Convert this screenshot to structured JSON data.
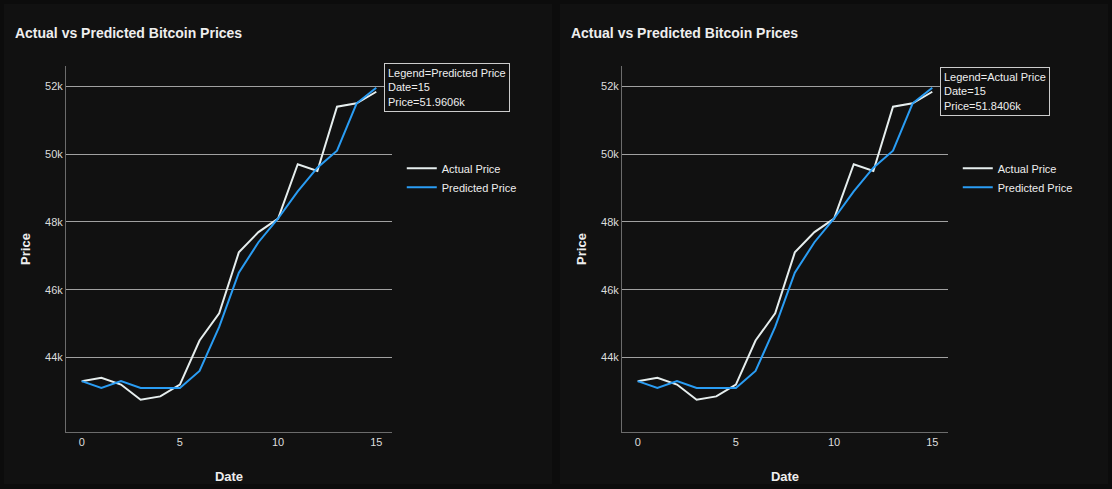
{
  "chart_data": [
    {
      "type": "line",
      "title": "Actual vs Predicted Bitcoin Prices",
      "x_label": "Date",
      "y_label": "Price",
      "x": [
        0,
        1,
        2,
        3,
        4,
        5,
        6,
        7,
        8,
        9,
        10,
        11,
        12,
        13,
        14,
        15
      ],
      "series": [
        {
          "name": "Actual Price",
          "color": "#e6eeee",
          "values": [
            43300,
            43400,
            43200,
            42750,
            42850,
            43200,
            44500,
            45300,
            47100,
            47700,
            48100,
            49700,
            49500,
            51400,
            51500,
            51840.6
          ]
        },
        {
          "name": "Predicted Price",
          "color": "#2a9df4",
          "values": [
            43300,
            43100,
            43300,
            43100,
            43100,
            43100,
            43600,
            44900,
            46500,
            47400,
            48100,
            48900,
            49600,
            50100,
            51500,
            51960.6
          ]
        }
      ],
      "xlim": [
        -0.8,
        15.8
      ],
      "xticks": [
        0,
        5,
        10,
        15
      ],
      "ylim": [
        41800,
        52600
      ],
      "yticks": [
        {
          "value": 44000,
          "label": "44k"
        },
        {
          "value": 46000,
          "label": "46k"
        },
        {
          "value": 48000,
          "label": "48k"
        },
        {
          "value": 50000,
          "label": "50k"
        },
        {
          "value": 52000,
          "label": "52k"
        }
      ],
      "grid": true,
      "legend": "right",
      "annotations": [
        {
          "x": 15,
          "y": 51960.6,
          "lines": [
            "Legend=Predicted Price",
            "Date=15",
            "Price=51.9606k"
          ]
        }
      ]
    },
    {
      "type": "line",
      "title": "Actual vs Predicted Bitcoin Prices",
      "x_label": "Date",
      "y_label": "Price",
      "x": [
        0,
        1,
        2,
        3,
        4,
        5,
        6,
        7,
        8,
        9,
        10,
        11,
        12,
        13,
        14,
        15
      ],
      "series": [
        {
          "name": "Actual Price",
          "color": "#e6eeee",
          "values": [
            43300,
            43400,
            43200,
            42750,
            42850,
            43200,
            44500,
            45300,
            47100,
            47700,
            48100,
            49700,
            49500,
            51400,
            51500,
            51840.6
          ]
        },
        {
          "name": "Predicted Price",
          "color": "#2a9df4",
          "values": [
            43300,
            43100,
            43300,
            43100,
            43100,
            43100,
            43600,
            44900,
            46500,
            47400,
            48100,
            48900,
            49600,
            50100,
            51500,
            51960.6
          ]
        }
      ],
      "xlim": [
        -0.8,
        15.8
      ],
      "xticks": [
        0,
        5,
        10,
        15
      ],
      "ylim": [
        41800,
        52600
      ],
      "yticks": [
        {
          "value": 44000,
          "label": "44k"
        },
        {
          "value": 46000,
          "label": "46k"
        },
        {
          "value": 48000,
          "label": "48k"
        },
        {
          "value": 50000,
          "label": "50k"
        },
        {
          "value": 52000,
          "label": "52k"
        }
      ],
      "grid": true,
      "legend": "right",
      "annotations": [
        {
          "x": 15,
          "y": 51840.6,
          "lines": [
            "Legend=Actual Price",
            "Date=15",
            "Price=51.8406k"
          ]
        }
      ]
    }
  ]
}
